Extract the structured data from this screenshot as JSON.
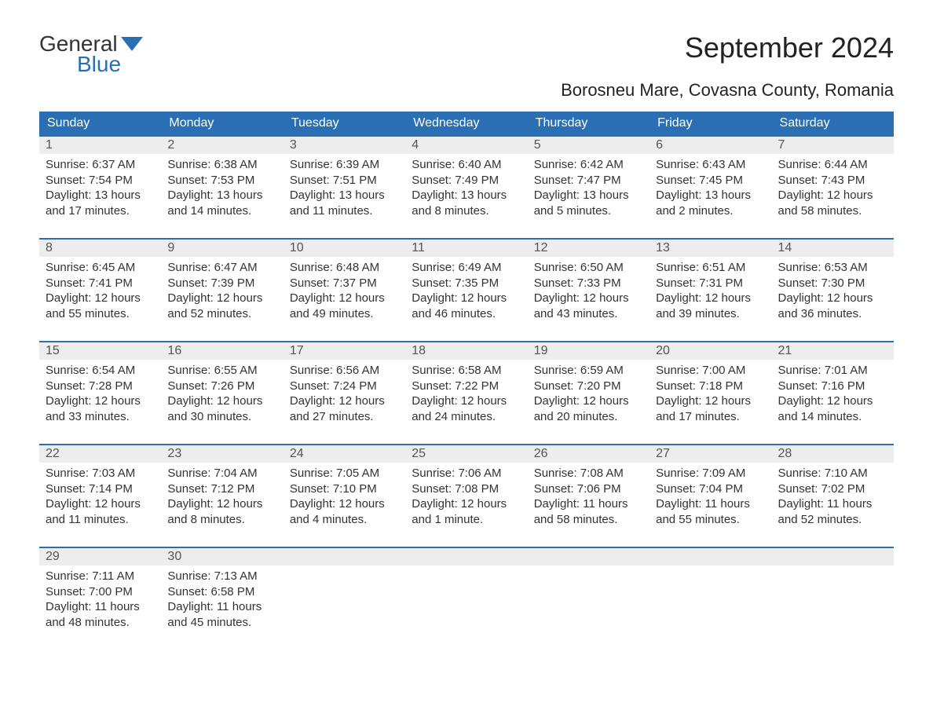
{
  "brand": {
    "word1": "General",
    "word2": "Blue",
    "accent_color": "#2a6fb3"
  },
  "title": "September 2024",
  "subtitle": "Borosneu Mare, Covasna County, Romania",
  "colors": {
    "header_bg": "#2a6fb3",
    "header_text": "#ffffff",
    "daynum_bg": "#ededed",
    "text": "#333333",
    "page_bg": "#ffffff"
  },
  "columns": [
    "Sunday",
    "Monday",
    "Tuesday",
    "Wednesday",
    "Thursday",
    "Friday",
    "Saturday"
  ],
  "weeks": [
    [
      {
        "n": "1",
        "sr": "Sunrise: 6:37 AM",
        "ss": "Sunset: 7:54 PM",
        "d1": "Daylight: 13 hours",
        "d2": "and 17 minutes."
      },
      {
        "n": "2",
        "sr": "Sunrise: 6:38 AM",
        "ss": "Sunset: 7:53 PM",
        "d1": "Daylight: 13 hours",
        "d2": "and 14 minutes."
      },
      {
        "n": "3",
        "sr": "Sunrise: 6:39 AM",
        "ss": "Sunset: 7:51 PM",
        "d1": "Daylight: 13 hours",
        "d2": "and 11 minutes."
      },
      {
        "n": "4",
        "sr": "Sunrise: 6:40 AM",
        "ss": "Sunset: 7:49 PM",
        "d1": "Daylight: 13 hours",
        "d2": "and 8 minutes."
      },
      {
        "n": "5",
        "sr": "Sunrise: 6:42 AM",
        "ss": "Sunset: 7:47 PM",
        "d1": "Daylight: 13 hours",
        "d2": "and 5 minutes."
      },
      {
        "n": "6",
        "sr": "Sunrise: 6:43 AM",
        "ss": "Sunset: 7:45 PM",
        "d1": "Daylight: 13 hours",
        "d2": "and 2 minutes."
      },
      {
        "n": "7",
        "sr": "Sunrise: 6:44 AM",
        "ss": "Sunset: 7:43 PM",
        "d1": "Daylight: 12 hours",
        "d2": "and 58 minutes."
      }
    ],
    [
      {
        "n": "8",
        "sr": "Sunrise: 6:45 AM",
        "ss": "Sunset: 7:41 PM",
        "d1": "Daylight: 12 hours",
        "d2": "and 55 minutes."
      },
      {
        "n": "9",
        "sr": "Sunrise: 6:47 AM",
        "ss": "Sunset: 7:39 PM",
        "d1": "Daylight: 12 hours",
        "d2": "and 52 minutes."
      },
      {
        "n": "10",
        "sr": "Sunrise: 6:48 AM",
        "ss": "Sunset: 7:37 PM",
        "d1": "Daylight: 12 hours",
        "d2": "and 49 minutes."
      },
      {
        "n": "11",
        "sr": "Sunrise: 6:49 AM",
        "ss": "Sunset: 7:35 PM",
        "d1": "Daylight: 12 hours",
        "d2": "and 46 minutes."
      },
      {
        "n": "12",
        "sr": "Sunrise: 6:50 AM",
        "ss": "Sunset: 7:33 PM",
        "d1": "Daylight: 12 hours",
        "d2": "and 43 minutes."
      },
      {
        "n": "13",
        "sr": "Sunrise: 6:51 AM",
        "ss": "Sunset: 7:31 PM",
        "d1": "Daylight: 12 hours",
        "d2": "and 39 minutes."
      },
      {
        "n": "14",
        "sr": "Sunrise: 6:53 AM",
        "ss": "Sunset: 7:30 PM",
        "d1": "Daylight: 12 hours",
        "d2": "and 36 minutes."
      }
    ],
    [
      {
        "n": "15",
        "sr": "Sunrise: 6:54 AM",
        "ss": "Sunset: 7:28 PM",
        "d1": "Daylight: 12 hours",
        "d2": "and 33 minutes."
      },
      {
        "n": "16",
        "sr": "Sunrise: 6:55 AM",
        "ss": "Sunset: 7:26 PM",
        "d1": "Daylight: 12 hours",
        "d2": "and 30 minutes."
      },
      {
        "n": "17",
        "sr": "Sunrise: 6:56 AM",
        "ss": "Sunset: 7:24 PM",
        "d1": "Daylight: 12 hours",
        "d2": "and 27 minutes."
      },
      {
        "n": "18",
        "sr": "Sunrise: 6:58 AM",
        "ss": "Sunset: 7:22 PM",
        "d1": "Daylight: 12 hours",
        "d2": "and 24 minutes."
      },
      {
        "n": "19",
        "sr": "Sunrise: 6:59 AM",
        "ss": "Sunset: 7:20 PM",
        "d1": "Daylight: 12 hours",
        "d2": "and 20 minutes."
      },
      {
        "n": "20",
        "sr": "Sunrise: 7:00 AM",
        "ss": "Sunset: 7:18 PM",
        "d1": "Daylight: 12 hours",
        "d2": "and 17 minutes."
      },
      {
        "n": "21",
        "sr": "Sunrise: 7:01 AM",
        "ss": "Sunset: 7:16 PM",
        "d1": "Daylight: 12 hours",
        "d2": "and 14 minutes."
      }
    ],
    [
      {
        "n": "22",
        "sr": "Sunrise: 7:03 AM",
        "ss": "Sunset: 7:14 PM",
        "d1": "Daylight: 12 hours",
        "d2": "and 11 minutes."
      },
      {
        "n": "23",
        "sr": "Sunrise: 7:04 AM",
        "ss": "Sunset: 7:12 PM",
        "d1": "Daylight: 12 hours",
        "d2": "and 8 minutes."
      },
      {
        "n": "24",
        "sr": "Sunrise: 7:05 AM",
        "ss": "Sunset: 7:10 PM",
        "d1": "Daylight: 12 hours",
        "d2": "and 4 minutes."
      },
      {
        "n": "25",
        "sr": "Sunrise: 7:06 AM",
        "ss": "Sunset: 7:08 PM",
        "d1": "Daylight: 12 hours",
        "d2": "and 1 minute."
      },
      {
        "n": "26",
        "sr": "Sunrise: 7:08 AM",
        "ss": "Sunset: 7:06 PM",
        "d1": "Daylight: 11 hours",
        "d2": "and 58 minutes."
      },
      {
        "n": "27",
        "sr": "Sunrise: 7:09 AM",
        "ss": "Sunset: 7:04 PM",
        "d1": "Daylight: 11 hours",
        "d2": "and 55 minutes."
      },
      {
        "n": "28",
        "sr": "Sunrise: 7:10 AM",
        "ss": "Sunset: 7:02 PM",
        "d1": "Daylight: 11 hours",
        "d2": "and 52 minutes."
      }
    ],
    [
      {
        "n": "29",
        "sr": "Sunrise: 7:11 AM",
        "ss": "Sunset: 7:00 PM",
        "d1": "Daylight: 11 hours",
        "d2": "and 48 minutes."
      },
      {
        "n": "30",
        "sr": "Sunrise: 7:13 AM",
        "ss": "Sunset: 6:58 PM",
        "d1": "Daylight: 11 hours",
        "d2": "and 45 minutes."
      },
      null,
      null,
      null,
      null,
      null
    ]
  ]
}
